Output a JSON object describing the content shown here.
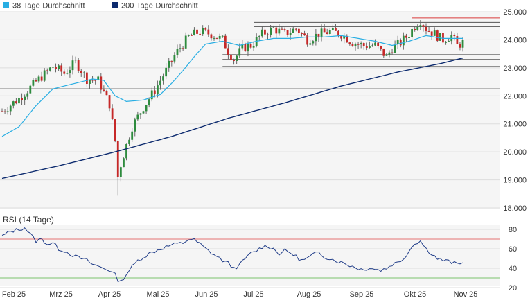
{
  "colors": {
    "sma38": "#29aee3",
    "sma200": "#0c2a6e",
    "candle_up": "#2e8b3e",
    "candle_down": "#c62828",
    "wick": "#666666",
    "panel_bg": "#f5f5f5",
    "grid": "#dddddd",
    "resistance": "#d93b3b",
    "rsi_line": "#1f3c88",
    "rsi_upper": "#e57373",
    "rsi_lower": "#7cc46d"
  },
  "chart_data": [
    {
      "type": "candlestick",
      "legend": [
        {
          "name": "38-Tage-Durchschnitt",
          "color": "#29aee3"
        },
        {
          "name": "200-Tage-Durchschnitt",
          "color": "#0c2a6e"
        }
      ],
      "legend_position": "top-left",
      "y_axis_position": "right",
      "ylim": [
        18.0,
        25.0
      ],
      "y_ticks": [
        "25.000",
        "24.000",
        "23.000",
        "22.000",
        "21.000",
        "20.000",
        "19.000",
        "18.000"
      ],
      "y_tick_values": [
        25,
        24,
        23,
        22,
        21,
        20,
        19,
        18
      ],
      "x_ticks": [
        "Feb 25",
        "Mrz 25",
        "Apr 25",
        "Mai 25",
        "Jun 25",
        "Jul 25",
        "Aug 25",
        "Sep 25",
        "Okt 25",
        "Nov 25"
      ],
      "grid": true,
      "horizontal_levels": [
        {
          "value": 24.78,
          "role": "resistance"
        },
        {
          "value": 24.62,
          "role": "level"
        },
        {
          "value": 24.47,
          "role": "level"
        },
        {
          "value": 23.47,
          "role": "level"
        },
        {
          "value": 23.3,
          "role": "level"
        },
        {
          "value": 23.05,
          "role": "level"
        },
        {
          "value": 22.25,
          "role": "level"
        }
      ],
      "anchors": [
        [
          0,
          21.45
        ],
        [
          6,
          21.9
        ],
        [
          12,
          22.5
        ],
        [
          18,
          23.05
        ],
        [
          22,
          22.8
        ],
        [
          26,
          23.2
        ],
        [
          30,
          22.6
        ],
        [
          34,
          22.55
        ],
        [
          38,
          21.7
        ],
        [
          40,
          20.4
        ],
        [
          41,
          19.2
        ],
        [
          43,
          19.9
        ],
        [
          46,
          20.9
        ],
        [
          50,
          21.6
        ],
        [
          54,
          22.2
        ],
        [
          58,
          22.9
        ],
        [
          62,
          23.6
        ],
        [
          66,
          24.1
        ],
        [
          70,
          24.3
        ],
        [
          74,
          24.2
        ],
        [
          78,
          24.0
        ],
        [
          80,
          23.6
        ],
        [
          82,
          23.3
        ],
        [
          85,
          23.7
        ],
        [
          88,
          23.8
        ],
        [
          92,
          24.2
        ],
        [
          96,
          24.4
        ],
        [
          100,
          24.2
        ],
        [
          104,
          24.4
        ],
        [
          108,
          24.0
        ],
        [
          112,
          24.2
        ],
        [
          116,
          24.3
        ],
        [
          120,
          24.2
        ],
        [
          124,
          23.9
        ],
        [
          128,
          23.8
        ],
        [
          132,
          23.8
        ],
        [
          134,
          23.6
        ],
        [
          136,
          23.4
        ],
        [
          138,
          23.7
        ],
        [
          141,
          23.9
        ],
        [
          144,
          24.2
        ],
        [
          146,
          24.5
        ],
        [
          148,
          24.7
        ],
        [
          150,
          24.4
        ],
        [
          153,
          24.2
        ],
        [
          156,
          24.0
        ],
        [
          159,
          24.15
        ],
        [
          161,
          23.8
        ],
        [
          163,
          23.9
        ]
      ],
      "sma38": [
        [
          0,
          20.55
        ],
        [
          6,
          20.9
        ],
        [
          12,
          21.65
        ],
        [
          18,
          22.25
        ],
        [
          26,
          22.45
        ],
        [
          32,
          22.6
        ],
        [
          36,
          22.55
        ],
        [
          40,
          22.0
        ],
        [
          44,
          21.8
        ],
        [
          50,
          21.85
        ],
        [
          56,
          22.05
        ],
        [
          60,
          22.45
        ],
        [
          64,
          22.9
        ],
        [
          68,
          23.4
        ],
        [
          72,
          23.85
        ],
        [
          78,
          23.95
        ],
        [
          84,
          23.8
        ],
        [
          90,
          23.95
        ],
        [
          96,
          24.05
        ],
        [
          102,
          24.05
        ],
        [
          108,
          24.1
        ],
        [
          114,
          24.1
        ],
        [
          120,
          24.15
        ],
        [
          126,
          24.05
        ],
        [
          132,
          23.95
        ],
        [
          138,
          23.8
        ],
        [
          144,
          23.95
        ],
        [
          150,
          24.15
        ],
        [
          156,
          24.05
        ],
        [
          163,
          24.05
        ]
      ],
      "sma200": [
        [
          0,
          19.05
        ],
        [
          20,
          19.5
        ],
        [
          40,
          20.0
        ],
        [
          60,
          20.55
        ],
        [
          80,
          21.2
        ],
        [
          100,
          21.75
        ],
        [
          120,
          22.35
        ],
        [
          140,
          22.85
        ],
        [
          155,
          23.15
        ],
        [
          163,
          23.35
        ]
      ]
    },
    {
      "type": "line",
      "title": "RSI (14 Tage)",
      "ylim": [
        20,
        85
      ],
      "y_ticks": [
        "80",
        "60",
        "40",
        "20"
      ],
      "y_tick_values": [
        80,
        60,
        40,
        20
      ],
      "overbought": 70,
      "oversold": 30,
      "x_ticks": [
        "Feb 25",
        "Mrz 25",
        "Apr 25",
        "Mai 25",
        "Jun 25",
        "Jul 25",
        "Aug 25",
        "Sep 25",
        "Okt 25",
        "Nov 25"
      ],
      "values": [
        [
          0,
          73
        ],
        [
          3,
          78
        ],
        [
          6,
          80
        ],
        [
          8,
          82
        ],
        [
          10,
          75
        ],
        [
          12,
          68
        ],
        [
          14,
          70
        ],
        [
          16,
          65
        ],
        [
          18,
          66
        ],
        [
          20,
          60
        ],
        [
          22,
          58
        ],
        [
          24,
          55
        ],
        [
          26,
          52
        ],
        [
          28,
          50
        ],
        [
          30,
          48
        ],
        [
          32,
          44
        ],
        [
          34,
          42
        ],
        [
          36,
          40
        ],
        [
          38,
          38
        ],
        [
          40,
          33
        ],
        [
          41,
          28
        ],
        [
          42,
          26
        ],
        [
          43,
          30
        ],
        [
          45,
          38
        ],
        [
          48,
          48
        ],
        [
          52,
          55
        ],
        [
          56,
          60
        ],
        [
          60,
          64
        ],
        [
          64,
          66
        ],
        [
          66,
          70
        ],
        [
          68,
          69
        ],
        [
          70,
          65
        ],
        [
          72,
          60
        ],
        [
          74,
          56
        ],
        [
          76,
          52
        ],
        [
          78,
          48
        ],
        [
          80,
          45
        ],
        [
          82,
          40
        ],
        [
          84,
          43
        ],
        [
          86,
          50
        ],
        [
          88,
          55
        ],
        [
          90,
          58
        ],
        [
          92,
          62
        ],
        [
          94,
          63
        ],
        [
          96,
          60
        ],
        [
          98,
          55
        ],
        [
          100,
          58
        ],
        [
          102,
          56
        ],
        [
          104,
          52
        ],
        [
          106,
          48
        ],
        [
          108,
          50
        ],
        [
          110,
          54
        ],
        [
          112,
          56
        ],
        [
          114,
          52
        ],
        [
          116,
          50
        ],
        [
          118,
          48
        ],
        [
          120,
          46
        ],
        [
          122,
          44
        ],
        [
          124,
          42
        ],
        [
          126,
          40
        ],
        [
          128,
          38
        ],
        [
          130,
          41
        ],
        [
          132,
          39
        ],
        [
          134,
          38
        ],
        [
          136,
          40
        ],
        [
          138,
          44
        ],
        [
          140,
          46
        ],
        [
          142,
          50
        ],
        [
          144,
          58
        ],
        [
          146,
          66
        ],
        [
          148,
          68
        ],
        [
          150,
          60
        ],
        [
          152,
          55
        ],
        [
          154,
          50
        ],
        [
          156,
          48
        ],
        [
          158,
          47
        ],
        [
          160,
          45
        ],
        [
          162,
          44
        ],
        [
          163,
          47
        ]
      ]
    }
  ]
}
